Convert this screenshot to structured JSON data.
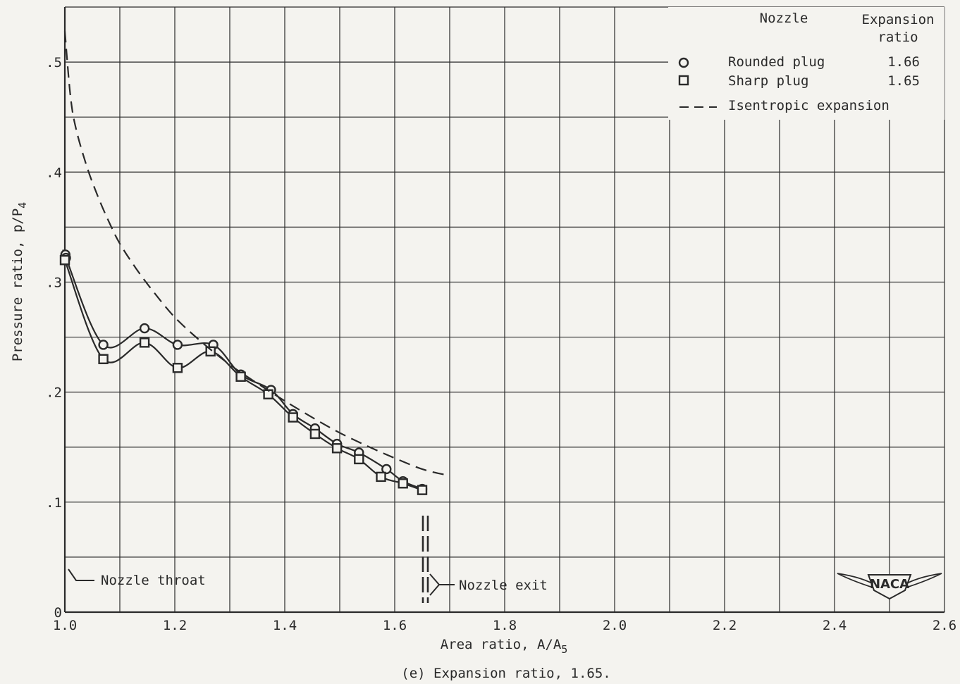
{
  "chart_data": {
    "type": "line",
    "title": "",
    "caption": "(e) Expansion ratio, 1.65.",
    "xlabel": {
      "main": "Area ratio, A/A",
      "sub": "5"
    },
    "ylabel": {
      "main": "Pressure ratio, p/P",
      "sub": "4"
    },
    "xlim": [
      1.0,
      2.6
    ],
    "ylim": [
      0,
      0.55
    ],
    "x_ticks": [
      {
        "value": 1.0,
        "label": "1.0"
      },
      {
        "value": 1.2,
        "label": "1.2"
      },
      {
        "value": 1.4,
        "label": "1.4"
      },
      {
        "value": 1.6,
        "label": "1.6"
      },
      {
        "value": 1.8,
        "label": "1.8"
      },
      {
        "value": 2.0,
        "label": "2.0"
      },
      {
        "value": 2.2,
        "label": "2.2"
      },
      {
        "value": 2.4,
        "label": "2.4"
      },
      {
        "value": 2.6,
        "label": "2.6"
      }
    ],
    "y_ticks": [
      {
        "value": 0,
        "label": "0"
      },
      {
        "value": 0.1,
        "label": ".1"
      },
      {
        "value": 0.2,
        "label": ".2"
      },
      {
        "value": 0.3,
        "label": ".3"
      },
      {
        "value": 0.4,
        "label": ".4"
      },
      {
        "value": 0.5,
        "label": ".5"
      }
    ],
    "grid": true,
    "grid_x_step": 0.1,
    "grid_y_step": 0.05,
    "legend": {
      "placement": "top-right",
      "header_nozzle": "Nozzle",
      "header_ratio_line1": "Expansion",
      "header_ratio_line2": "ratio",
      "entries": [
        {
          "marker": "circle",
          "label": "Rounded plug",
          "ratio": "1.66"
        },
        {
          "marker": "square",
          "label": "Sharp plug",
          "ratio": "1.65"
        },
        {
          "marker": "dashed-line",
          "label": "Isentropic expansion",
          "ratio": ""
        }
      ]
    },
    "series": [
      {
        "name": "Rounded plug",
        "marker": "circle",
        "points": [
          [
            1.001,
            0.325
          ],
          [
            1.002,
            0.322
          ],
          [
            1.07,
            0.243
          ],
          [
            1.145,
            0.258
          ],
          [
            1.205,
            0.243
          ],
          [
            1.27,
            0.243
          ],
          [
            1.32,
            0.216
          ],
          [
            1.375,
            0.202
          ],
          [
            1.415,
            0.18
          ],
          [
            1.455,
            0.167
          ],
          [
            1.495,
            0.153
          ],
          [
            1.535,
            0.145
          ],
          [
            1.585,
            0.13
          ],
          [
            1.615,
            0.119
          ],
          [
            1.65,
            0.112
          ]
        ]
      },
      {
        "name": "Sharp plug",
        "marker": "square",
        "points": [
          [
            1.0,
            0.32
          ],
          [
            1.07,
            0.23
          ],
          [
            1.145,
            0.245
          ],
          [
            1.205,
            0.222
          ],
          [
            1.265,
            0.237
          ],
          [
            1.32,
            0.214
          ],
          [
            1.37,
            0.198
          ],
          [
            1.415,
            0.177
          ],
          [
            1.455,
            0.162
          ],
          [
            1.495,
            0.149
          ],
          [
            1.535,
            0.139
          ],
          [
            1.575,
            0.123
          ],
          [
            1.615,
            0.117
          ],
          [
            1.65,
            0.111
          ]
        ]
      },
      {
        "name": "Isentropic expansion",
        "marker": "none",
        "dashed": true,
        "points": [
          [
            1.0,
            0.528
          ],
          [
            1.01,
            0.47
          ],
          [
            1.02,
            0.44
          ],
          [
            1.04,
            0.405
          ],
          [
            1.06,
            0.378
          ],
          [
            1.08,
            0.355
          ],
          [
            1.1,
            0.335
          ],
          [
            1.13,
            0.312
          ],
          [
            1.16,
            0.292
          ],
          [
            1.2,
            0.268
          ],
          [
            1.25,
            0.245
          ],
          [
            1.3,
            0.225
          ],
          [
            1.35,
            0.208
          ],
          [
            1.4,
            0.192
          ],
          [
            1.45,
            0.177
          ],
          [
            1.5,
            0.163
          ],
          [
            1.55,
            0.151
          ],
          [
            1.6,
            0.14
          ],
          [
            1.65,
            0.13
          ],
          [
            1.69,
            0.125
          ]
        ]
      }
    ],
    "annotations": [
      {
        "id": "nozzle-throat",
        "text": "Nozzle throat",
        "x": 1.0,
        "y": 0.03
      },
      {
        "id": "nozzle-exit",
        "text": "Nozzle exit",
        "x": 1.65,
        "y": 0.025
      }
    ],
    "logo_text": "NACA"
  }
}
